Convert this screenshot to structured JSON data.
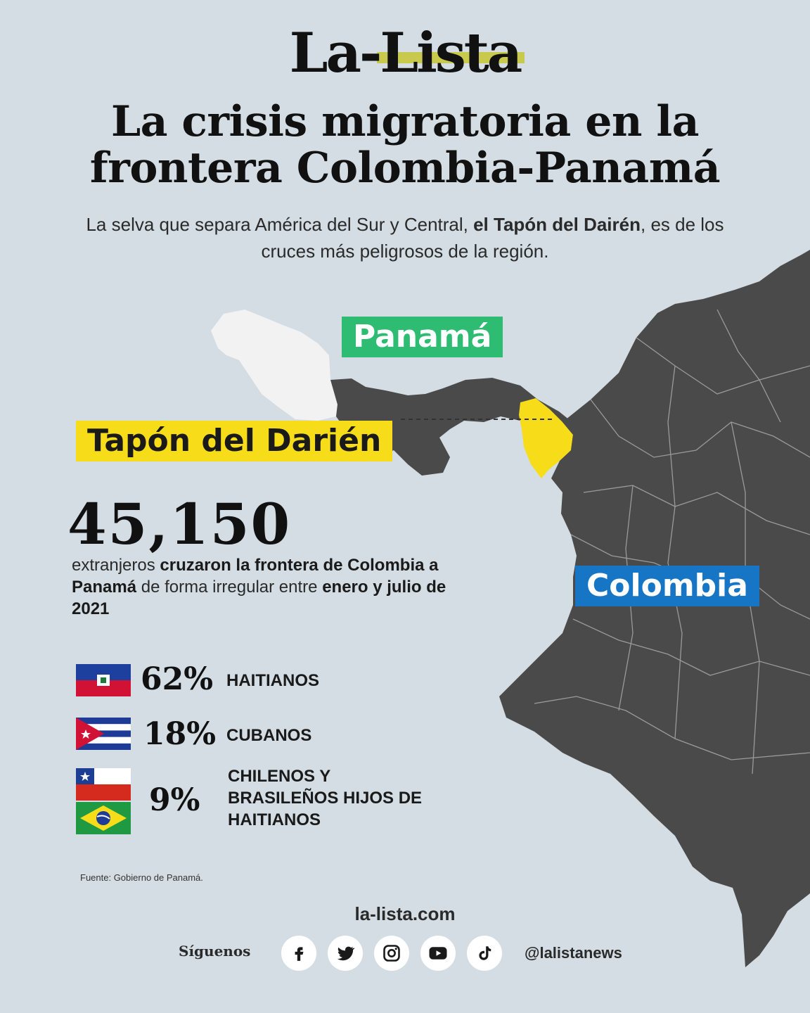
{
  "brand": {
    "logo_prefix": "La-",
    "logo_main": "Lista",
    "accent": "#c6c63c"
  },
  "title": "La crisis migratoria en la frontera Colombia-Panamá",
  "subtitle": {
    "part1": "La selva que separa América del Sur y Central, ",
    "bold1": "el Tapón del Dairén",
    "part2": ", es de los cruces más peligrosos de la región."
  },
  "map": {
    "labels": {
      "panama": {
        "text": "Panamá",
        "color": "#2ebc73"
      },
      "tapon": {
        "text": "Tapón del Darién",
        "color": "#f7dc1a"
      },
      "colombia": {
        "text": "Colombia",
        "color": "#1675c4"
      }
    },
    "land_color": "#4a4a4a",
    "costa_rica_color": "#f2f2f2",
    "darien_color": "#f7dc1a"
  },
  "stat": {
    "number": "45,150",
    "d1": "extranjeros ",
    "d1b": "cruzaron la frontera de Colombia a Panamá",
    "d2": " de forma irregular entre ",
    "d2b": "enero y julio de 2021"
  },
  "breakdown": [
    {
      "flag": "haiti-flag",
      "pct": "62%",
      "label": "HAITIANOS"
    },
    {
      "flag": "cuba-flag",
      "pct": "18%",
      "label": "CUBANOS"
    },
    {
      "flag": "chile-brazil-flags",
      "pct": "9%",
      "label": "CHILENOS Y BRASILEÑOS HIJOS DE HAITIANOS"
    }
  ],
  "source": "Fuente: Gobierno de Panamá.",
  "footer": {
    "site": "la-lista.com",
    "follow": "Síguenos",
    "handle": "@lalistanews",
    "social": [
      "facebook-icon",
      "twitter-icon",
      "instagram-icon",
      "youtube-icon",
      "tiktok-icon"
    ]
  }
}
